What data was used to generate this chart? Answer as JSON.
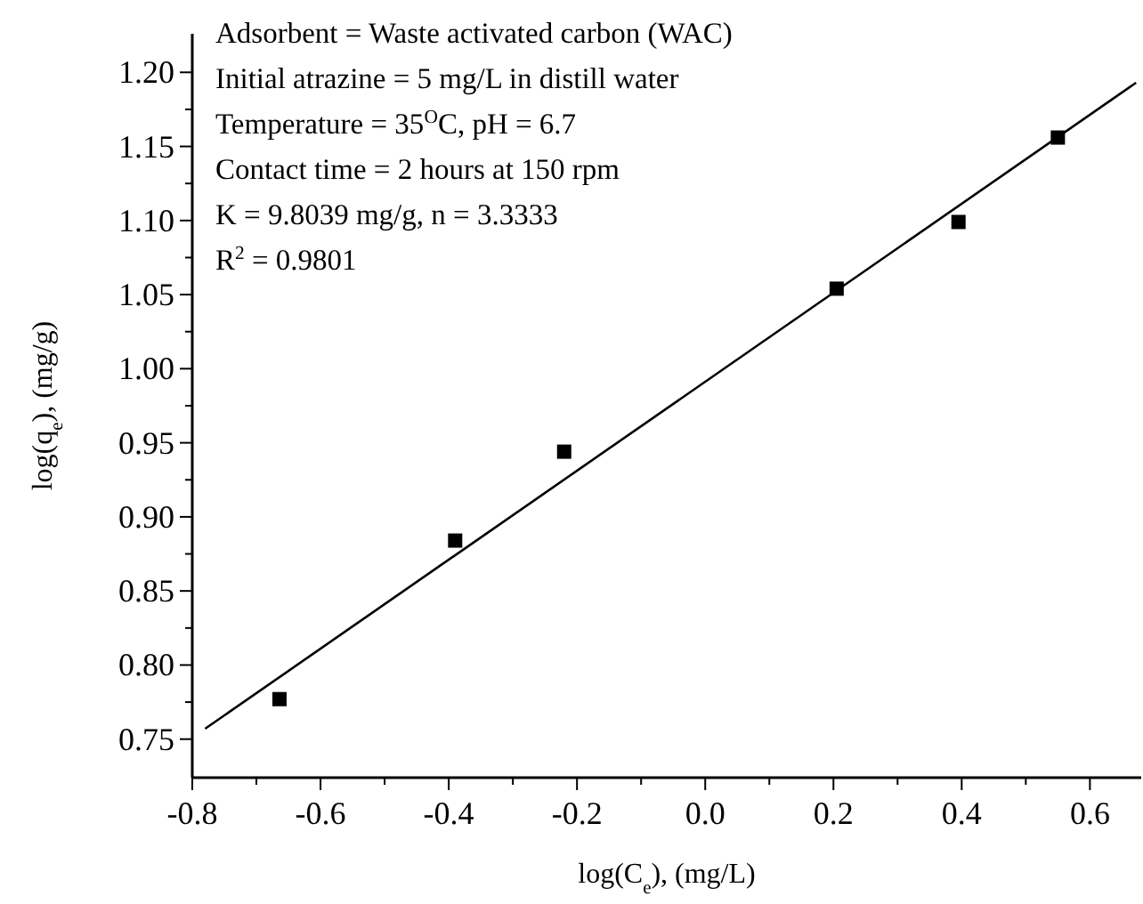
{
  "chart_data": {
    "type": "scatter",
    "xlabel": "log(C$_{e}$), (mg/L)",
    "ylabel": "log(q$_{e}$), (mg/g)",
    "xlim": [
      -0.8,
      0.68
    ],
    "ylim": [
      0.724,
      1.226
    ],
    "xticks": [
      -0.8,
      {
        "value": -0.7,
        "label": null
      },
      -0.6,
      {
        "value": -0.5,
        "label": null
      },
      -0.4,
      {
        "value": -0.3,
        "label": null
      },
      -0.2,
      {
        "value": -0.1,
        "label": null
      },
      {
        "value": 0,
        "label": "0.0"
      },
      {
        "value": 0.1,
        "label": null
      },
      0.2,
      {
        "value": 0.3,
        "label": null
      },
      0.4,
      {
        "value": 0.5,
        "label": null
      },
      0.6
    ],
    "yticks": [
      0.75,
      {
        "value": 0.775,
        "label": null
      },
      {
        "value": 0.8,
        "label": "0.80"
      },
      {
        "value": 0.825,
        "label": null
      },
      0.85,
      {
        "value": 0.875,
        "label": null
      },
      {
        "value": 0.9,
        "label": "0.90"
      },
      {
        "value": 0.925,
        "label": null
      },
      0.95,
      {
        "value": 0.975,
        "label": null
      },
      {
        "value": 1,
        "label": "1.00"
      },
      {
        "value": 1.025,
        "label": null
      },
      1.05,
      {
        "value": 1.075,
        "label": null
      },
      {
        "value": 1.1,
        "label": "1.10"
      },
      {
        "value": 1.125,
        "label": null
      },
      1.15,
      {
        "value": 1.175,
        "label": null
      },
      {
        "value": 1.2,
        "label": "1.20"
      }
    ],
    "series": [
      {
        "color": "#000000",
        "marker": "square",
        "x": [
          -0.664,
          -0.39,
          -0.22,
          0.205,
          0.395,
          0.55
        ],
        "values": [
          0.777,
          0.884,
          0.944,
          1.054,
          1.099,
          1.156
        ]
      },
      {
        "type": "line",
        "color": "#000000",
        "line_style": "solid",
        "x": [
          -0.78,
          0.672
        ],
        "values": [
          0.757,
          1.193
        ]
      }
    ],
    "annotations": [
      "Adsorbent = Waste activated carbon (WAC)",
      "Initial atrazine = 5 mg/L in distill water",
      "Temperature = 35$^{O}$C, pH = 6.7",
      "Contact time = 2 hours at 150 rpm",
      "K = 9.8039 mg/g, n = 3.3333",
      "R$^{2}$ = 0.9801"
    ],
    "grid": false
  }
}
